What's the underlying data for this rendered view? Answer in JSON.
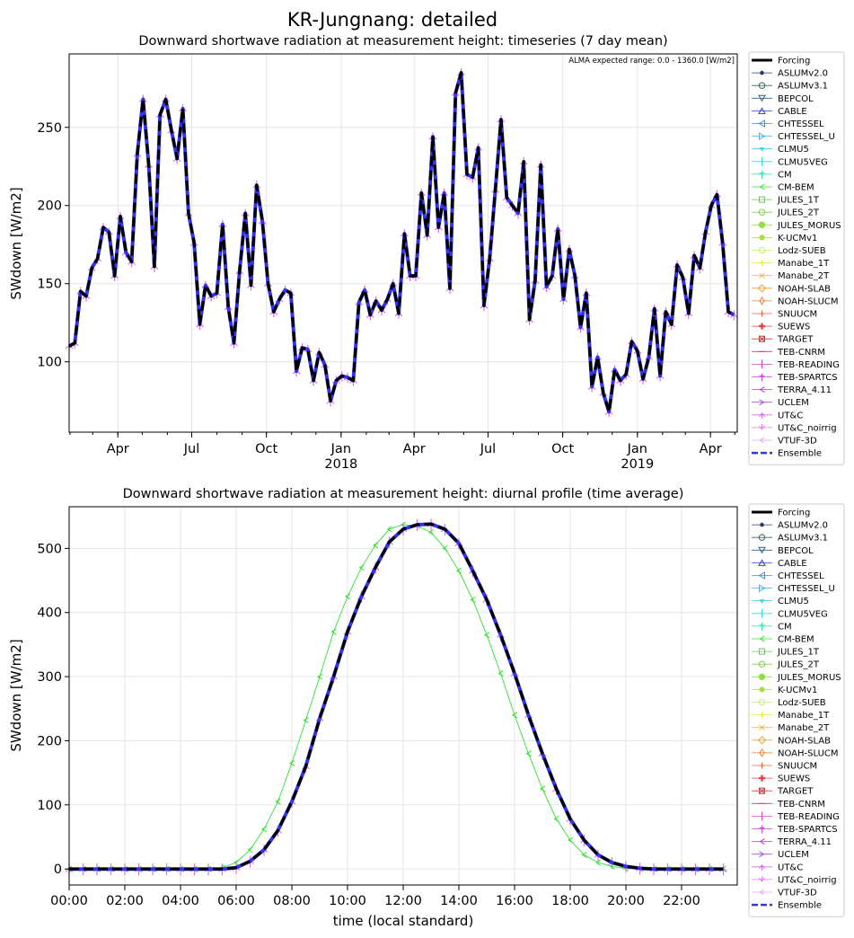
{
  "figure": {
    "title": "KR-Jungnang: detailed"
  },
  "legend_entries": [
    {
      "name": "Forcing",
      "color": "#000000",
      "marker": "line",
      "width": 3
    },
    {
      "name": "ASLUMv2.0",
      "color": "#2a3a6e",
      "marker": "dot"
    },
    {
      "name": "ASLUMv3.1",
      "color": "#2f6a4a",
      "marker": "circle-open"
    },
    {
      "name": "BEPCOL",
      "color": "#2c5f8c",
      "marker": "tri-down"
    },
    {
      "name": "CABLE",
      "color": "#3040d0",
      "marker": "tri-up"
    },
    {
      "name": "CHTESSEL",
      "color": "#3a8de0",
      "marker": "tri-left"
    },
    {
      "name": "CHTESSEL_U",
      "color": "#3ab8f0",
      "marker": "tri-right"
    },
    {
      "name": "CLMU5",
      "color": "#30d0e0",
      "marker": "tri-down-small"
    },
    {
      "name": "CLMU5VEG",
      "color": "#30e0d0",
      "marker": "vline"
    },
    {
      "name": "CM",
      "color": "#30e0a0",
      "marker": "tee"
    },
    {
      "name": "CM-BEM",
      "color": "#30e030",
      "marker": "arrow-left"
    },
    {
      "name": "JULES_1T",
      "color": "#60d040",
      "marker": "square-open"
    },
    {
      "name": "JULES_2T",
      "color": "#80d040",
      "marker": "circle-open"
    },
    {
      "name": "JULES_MORUS",
      "color": "#90e040",
      "marker": "hex"
    },
    {
      "name": "K-UCMv1",
      "color": "#a8e040",
      "marker": "dot-big"
    },
    {
      "name": "Lodz-SUEB",
      "color": "#c0f060",
      "marker": "circle-open"
    },
    {
      "name": "Manabe_1T",
      "color": "#e0f040",
      "marker": "plus"
    },
    {
      "name": "Manabe_2T",
      "color": "#f0c020",
      "marker": "x"
    },
    {
      "name": "NOAH-SLAB",
      "color": "#f0a030",
      "marker": "diamond-open"
    },
    {
      "name": "NOAH-SLUCM",
      "color": "#f08030",
      "marker": "thin-diamond"
    },
    {
      "name": "SNUUCM",
      "color": "#f06040",
      "marker": "plus"
    },
    {
      "name": "SUEWS",
      "color": "#f04040",
      "marker": "plus-filled"
    },
    {
      "name": "TARGET",
      "color": "#e03030",
      "marker": "square-x"
    },
    {
      "name": "TEB-CNRM",
      "color": "#e03060",
      "marker": "hline"
    },
    {
      "name": "TEB-READING",
      "color": "#e040c0",
      "marker": "vline"
    },
    {
      "name": "TEB-SPARTCS",
      "color": "#d040e0",
      "marker": "tee"
    },
    {
      "name": "TERRA_4.11",
      "color": "#b040e0",
      "marker": "arrow-left"
    },
    {
      "name": "UCLEM",
      "color": "#a050e0",
      "marker": "arrow-right"
    },
    {
      "name": "UT&C",
      "color": "#d070e0",
      "marker": "caret-up"
    },
    {
      "name": "UT&C_noirrig",
      "color": "#e080e0",
      "marker": "caret-down"
    },
    {
      "name": "VTUF-3D",
      "color": "#f0a0f0",
      "marker": "caret-left"
    },
    {
      "name": "Ensemble",
      "color": "#3333ee",
      "marker": "dash",
      "width": 2.5
    }
  ],
  "chart_data": [
    {
      "type": "line",
      "title": "Downward shortwave radiation at measurement height: timeseries (7 day mean)",
      "annotation": "ALMA expected range: 0.0 - 1360.0 [W/m2]",
      "ylabel": "SWdown [W/m2]",
      "xlabel": "",
      "ylim": [
        55,
        297
      ],
      "yticks": [
        100,
        150,
        200,
        250
      ],
      "xlim": [
        "2017-01-31",
        "2019-05-04"
      ],
      "xtick_labels": [
        {
          "date": "2017-04-01",
          "label": "Apr"
        },
        {
          "date": "2017-07-01",
          "label": "Jul"
        },
        {
          "date": "2017-10-01",
          "label": "Oct"
        },
        {
          "date": "2018-01-01",
          "label": "Jan",
          "sub": "2018"
        },
        {
          "date": "2018-04-01",
          "label": "Apr"
        },
        {
          "date": "2018-07-01",
          "label": "Jul"
        },
        {
          "date": "2018-10-01",
          "label": "Oct"
        },
        {
          "date": "2019-01-01",
          "label": "Jan",
          "sub": "2019"
        },
        {
          "date": "2019-04-01",
          "label": "Apr"
        }
      ],
      "grid": true,
      "legend_position": "right-outside",
      "series_names": [
        "Forcing",
        "Ensemble"
      ],
      "x": [
        "2017-01-31",
        "2017-02-07",
        "2017-02-14",
        "2017-02-21",
        "2017-02-28",
        "2017-03-07",
        "2017-03-14",
        "2017-03-21",
        "2017-03-28",
        "2017-04-04",
        "2017-04-11",
        "2017-04-18",
        "2017-04-25",
        "2017-05-02",
        "2017-05-09",
        "2017-05-16",
        "2017-05-23",
        "2017-05-30",
        "2017-06-06",
        "2017-06-13",
        "2017-06-20",
        "2017-06-27",
        "2017-07-04",
        "2017-07-11",
        "2017-07-18",
        "2017-07-25",
        "2017-08-01",
        "2017-08-08",
        "2017-08-15",
        "2017-08-22",
        "2017-08-29",
        "2017-09-05",
        "2017-09-12",
        "2017-09-19",
        "2017-09-26",
        "2017-10-03",
        "2017-10-10",
        "2017-10-17",
        "2017-10-24",
        "2017-10-31",
        "2017-11-07",
        "2017-11-14",
        "2017-11-21",
        "2017-11-28",
        "2017-12-05",
        "2017-12-12",
        "2017-12-19",
        "2017-12-26",
        "2018-01-02",
        "2018-01-09",
        "2018-01-16",
        "2018-01-23",
        "2018-01-30",
        "2018-02-06",
        "2018-02-13",
        "2018-02-20",
        "2018-02-27",
        "2018-03-06",
        "2018-03-13",
        "2018-03-20",
        "2018-03-27",
        "2018-04-03",
        "2018-04-10",
        "2018-04-17",
        "2018-04-24",
        "2018-05-01",
        "2018-05-08",
        "2018-05-15",
        "2018-05-22",
        "2018-05-29",
        "2018-06-05",
        "2018-06-12",
        "2018-06-19",
        "2018-06-26",
        "2018-07-03",
        "2018-07-10",
        "2018-07-17",
        "2018-07-24",
        "2018-07-31",
        "2018-08-07",
        "2018-08-14",
        "2018-08-21",
        "2018-08-28",
        "2018-09-04",
        "2018-09-11",
        "2018-09-18",
        "2018-09-25",
        "2018-10-02",
        "2018-10-09",
        "2018-10-16",
        "2018-10-23",
        "2018-10-30",
        "2018-11-06",
        "2018-11-13",
        "2018-11-20",
        "2018-11-27",
        "2018-12-04",
        "2018-12-11",
        "2018-12-18",
        "2018-12-25",
        "2019-01-01",
        "2019-01-08",
        "2019-01-15",
        "2019-01-22",
        "2019-01-29",
        "2019-02-05",
        "2019-02-12",
        "2019-02-19",
        "2019-02-26",
        "2019-03-05",
        "2019-03-12",
        "2019-03-19",
        "2019-03-26",
        "2019-04-02",
        "2019-04-09",
        "2019-04-16",
        "2019-04-23",
        "2019-04-30"
      ],
      "series": [
        {
          "name": "Forcing",
          "values": [
            110,
            112,
            145,
            142,
            160,
            166,
            186,
            183,
            155,
            193,
            170,
            164,
            233,
            268,
            226,
            161,
            258,
            268,
            248,
            230,
            262,
            195,
            176,
            124,
            149,
            142,
            144,
            188,
            135,
            112,
            158,
            195,
            149,
            213,
            190,
            150,
            132,
            140,
            146,
            144,
            94,
            109,
            108,
            88,
            106,
            98,
            75,
            88,
            91,
            90,
            88,
            138,
            146,
            130,
            139,
            133,
            140,
            150,
            131,
            182,
            155,
            155,
            208,
            181,
            244,
            186,
            208,
            147,
            272,
            285,
            220,
            218,
            237,
            136,
            166,
            210,
            255,
            205,
            200,
            195,
            228,
            127,
            152,
            226,
            148,
            155,
            185,
            140,
            172,
            155,
            122,
            144,
            84,
            103,
            80,
            68,
            95,
            88,
            92,
            113,
            107,
            89,
            103,
            134,
            91,
            132,
            124,
            162,
            154,
            131,
            168,
            160,
            183,
            200,
            207,
            176,
            132,
            130
          ]
        },
        {
          "name": "Ensemble",
          "values": [
            110,
            112,
            145,
            142,
            160,
            166,
            186,
            183,
            155,
            193,
            170,
            164,
            233,
            268,
            226,
            161,
            258,
            268,
            248,
            230,
            262,
            195,
            176,
            124,
            149,
            142,
            144,
            188,
            135,
            112,
            158,
            195,
            149,
            213,
            190,
            150,
            132,
            140,
            146,
            144,
            94,
            109,
            108,
            88,
            106,
            98,
            75,
            88,
            91,
            90,
            88,
            138,
            146,
            130,
            139,
            133,
            140,
            150,
            131,
            182,
            155,
            155,
            208,
            181,
            244,
            186,
            208,
            147,
            272,
            285,
            220,
            218,
            237,
            136,
            166,
            210,
            255,
            205,
            200,
            195,
            228,
            127,
            152,
            226,
            148,
            155,
            185,
            140,
            172,
            155,
            122,
            144,
            84,
            103,
            80,
            68,
            95,
            88,
            92,
            113,
            107,
            89,
            103,
            134,
            91,
            132,
            124,
            162,
            154,
            131,
            168,
            160,
            183,
            200,
            207,
            176,
            132,
            130
          ]
        }
      ]
    },
    {
      "type": "line",
      "title": "Downward shortwave radiation at measurement height: diurnal profile (time average)",
      "ylabel": "SWdown [W/m2]",
      "xlabel": "time (local standard)",
      "ylim": [
        -25,
        565
      ],
      "yticks": [
        0,
        100,
        200,
        300,
        400,
        500
      ],
      "xlim": [
        0,
        24
      ],
      "xtick_labels": [
        "00:00",
        "02:00",
        "04:00",
        "06:00",
        "08:00",
        "10:00",
        "12:00",
        "14:00",
        "16:00",
        "18:00",
        "20:00",
        "22:00"
      ],
      "grid": true,
      "legend_position": "right-outside",
      "series_names": [
        "Forcing",
        "Ensemble",
        "CM-BEM"
      ],
      "x": [
        0,
        0.5,
        1,
        1.5,
        2,
        2.5,
        3,
        3.5,
        4,
        4.5,
        5,
        5.5,
        6,
        6.5,
        7,
        7.5,
        8,
        8.5,
        9,
        9.5,
        10,
        10.5,
        11,
        11.5,
        12,
        12.5,
        13,
        13.5,
        14,
        14.5,
        15,
        15.5,
        16,
        16.5,
        17,
        17.5,
        18,
        18.5,
        19,
        19.5,
        20,
        20.5,
        21,
        21.5,
        22,
        22.5,
        23,
        23.5
      ],
      "series": [
        {
          "name": "Forcing",
          "values": [
            0,
            0,
            0,
            0,
            0,
            0,
            0,
            0,
            0,
            0,
            0,
            0,
            2,
            12,
            30,
            60,
            105,
            160,
            235,
            300,
            370,
            425,
            470,
            510,
            530,
            537,
            538,
            530,
            508,
            465,
            420,
            365,
            305,
            240,
            180,
            125,
            78,
            45,
            22,
            10,
            4,
            1,
            0,
            0,
            0,
            0,
            0,
            0
          ]
        },
        {
          "name": "Ensemble",
          "values": [
            0,
            0,
            0,
            0,
            0,
            0,
            0,
            0,
            0,
            0,
            0,
            0,
            2,
            12,
            30,
            60,
            105,
            160,
            235,
            300,
            370,
            425,
            470,
            510,
            530,
            537,
            538,
            530,
            508,
            465,
            420,
            365,
            305,
            240,
            180,
            125,
            78,
            45,
            22,
            10,
            4,
            1,
            0,
            0,
            0,
            0,
            0,
            0
          ]
        },
        {
          "name": "CM-BEM",
          "values": [
            0,
            0,
            0,
            0,
            0,
            0,
            0,
            0,
            0,
            0,
            0,
            2,
            10,
            30,
            62,
            105,
            165,
            232,
            300,
            370,
            425,
            470,
            505,
            530,
            537,
            535,
            525,
            500,
            465,
            420,
            365,
            305,
            240,
            180,
            125,
            78,
            45,
            22,
            10,
            4,
            1,
            0,
            0,
            0,
            0,
            0,
            0,
            0
          ]
        }
      ]
    }
  ]
}
